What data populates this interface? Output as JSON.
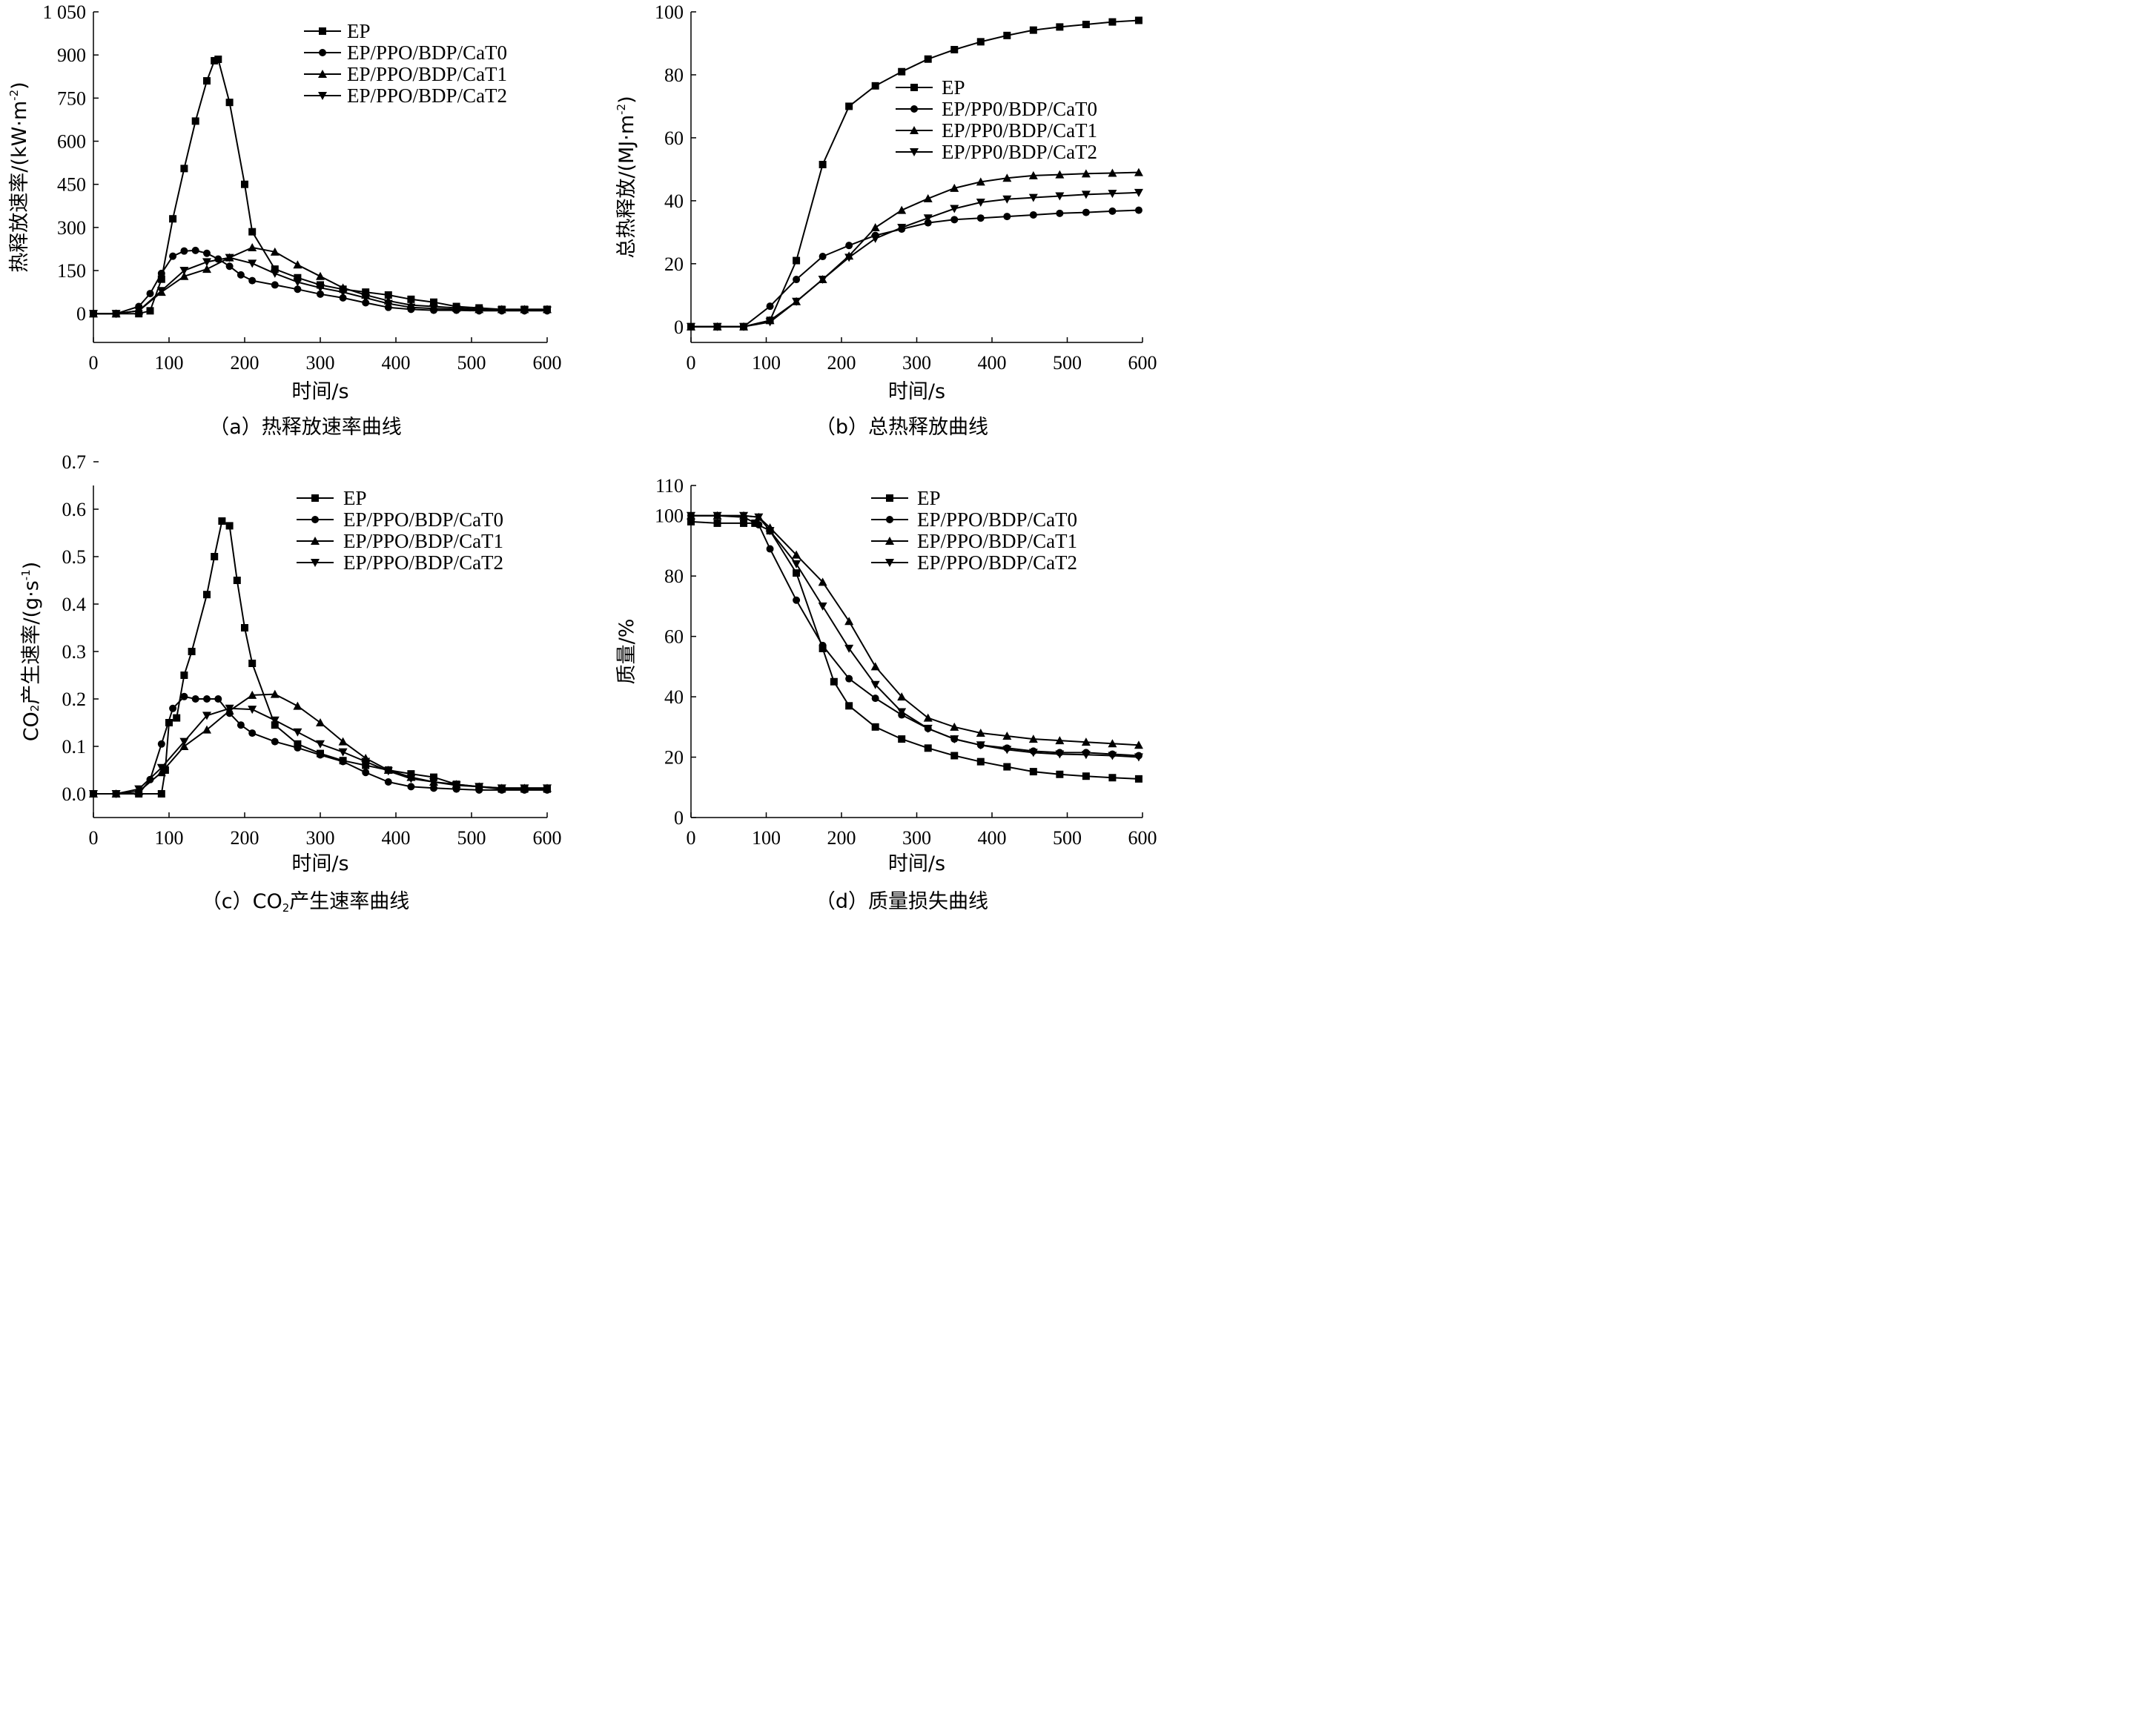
{
  "chart_data": [
    {
      "id": "a",
      "type": "line",
      "caption": "（a）热释放速率曲线",
      "xlabel": "时间/s",
      "ylabel": "热释放速率/(kW·m⁻²)",
      "xlim": [
        0,
        600
      ],
      "ylim": [
        -100,
        1050
      ],
      "xticks": [
        0,
        100,
        200,
        300,
        400,
        500,
        600
      ],
      "xtick_labels": [
        "0",
        "100",
        "200",
        "300",
        "400",
        "500",
        "600"
      ],
      "yticks": [
        0,
        150,
        300,
        450,
        600,
        750,
        900,
        1050
      ],
      "ytick_labels": [
        "0",
        "150",
        "300",
        "450",
        "600",
        "750",
        "900",
        "1 050"
      ],
      "legend_position": "top-right",
      "series": [
        {
          "name": "EP",
          "marker": "square",
          "x": [
            0,
            30,
            60,
            75,
            90,
            105,
            120,
            135,
            150,
            160,
            165,
            180,
            200,
            210,
            240,
            270,
            300,
            330,
            360,
            390,
            420,
            450,
            480,
            510,
            540,
            570,
            600
          ],
          "y": [
            0,
            0,
            0,
            10,
            120,
            330,
            505,
            670,
            810,
            880,
            885,
            735,
            450,
            285,
            155,
            125,
            100,
            85,
            75,
            65,
            50,
            40,
            25,
            20,
            15,
            15,
            15
          ]
        },
        {
          "name": "EP/PPO/BDP/CaT0",
          "marker": "circle",
          "x": [
            0,
            30,
            60,
            75,
            90,
            105,
            120,
            135,
            150,
            165,
            180,
            195,
            210,
            240,
            270,
            300,
            330,
            360,
            390,
            420,
            450,
            480,
            510,
            540,
            570,
            600
          ],
          "y": [
            0,
            0,
            25,
            70,
            140,
            200,
            218,
            220,
            210,
            190,
            165,
            135,
            115,
            100,
            85,
            68,
            55,
            38,
            22,
            15,
            12,
            12,
            10,
            10,
            10,
            10
          ]
        },
        {
          "name": "EP/PPO/BDP/CaT1",
          "marker": "triangle-up",
          "x": [
            0,
            30,
            60,
            90,
            120,
            150,
            180,
            210,
            240,
            270,
            300,
            330,
            360,
            390,
            420,
            450,
            480,
            510,
            540,
            570,
            600
          ],
          "y": [
            0,
            0,
            10,
            75,
            130,
            155,
            195,
            230,
            215,
            170,
            130,
            90,
            65,
            45,
            30,
            25,
            20,
            15,
            15,
            15,
            15
          ]
        },
        {
          "name": "EP/PPO/BDP/CaT2",
          "marker": "triangle-down",
          "x": [
            0,
            30,
            60,
            90,
            120,
            150,
            180,
            210,
            240,
            270,
            300,
            330,
            360,
            390,
            420,
            450,
            480,
            510,
            540,
            570,
            600
          ],
          "y": [
            0,
            0,
            10,
            80,
            150,
            180,
            195,
            175,
            140,
            110,
            90,
            75,
            55,
            35,
            22,
            18,
            15,
            12,
            12,
            12,
            12
          ]
        }
      ]
    },
    {
      "id": "b",
      "type": "line",
      "caption": "（b）总热释放曲线",
      "xlabel": "时间/s",
      "ylabel": "总热释放/(MJ·m⁻²)",
      "xlim": [
        0,
        600
      ],
      "ylim": [
        -5,
        100
      ],
      "xticks": [
        0,
        100,
        200,
        300,
        400,
        500,
        600
      ],
      "xtick_labels": [
        "0",
        "100",
        "200",
        "300",
        "400",
        "500",
        "600"
      ],
      "yticks": [
        0,
        20,
        40,
        60,
        80,
        100
      ],
      "ytick_labels": [
        "0",
        "20",
        "40",
        "60",
        "80",
        "100"
      ],
      "legend_position": "center-right",
      "series": [
        {
          "name": "EP",
          "marker": "square",
          "x": [
            0,
            35,
            70,
            105,
            140,
            175,
            210,
            245,
            280,
            315,
            350,
            385,
            420,
            455,
            490,
            525,
            560,
            595
          ],
          "y": [
            0,
            0,
            0,
            2,
            21,
            51.5,
            70,
            76.5,
            81,
            85,
            88,
            90.5,
            92.5,
            94.2,
            95.2,
            96,
            96.8,
            97.3
          ]
        },
        {
          "name": "EP/PP0/BDP/CaT0",
          "marker": "circle",
          "x": [
            0,
            35,
            70,
            105,
            140,
            175,
            210,
            245,
            280,
            315,
            350,
            385,
            420,
            455,
            490,
            525,
            560,
            595
          ],
          "y": [
            0,
            0,
            0,
            6.5,
            15,
            22.3,
            25.8,
            29,
            31,
            33,
            34,
            34.5,
            35,
            35.5,
            36,
            36.3,
            36.7,
            37
          ]
        },
        {
          "name": "EP/PP0/BDP/CaT1",
          "marker": "triangle-up",
          "x": [
            0,
            35,
            70,
            105,
            140,
            175,
            210,
            245,
            280,
            315,
            350,
            385,
            420,
            455,
            490,
            525,
            560,
            595
          ],
          "y": [
            0,
            0,
            0,
            2,
            8,
            15,
            22.5,
            31.5,
            37,
            40.7,
            44,
            46,
            47.2,
            48,
            48.3,
            48.6,
            48.8,
            49
          ]
        },
        {
          "name": "EP/PP0/BDP/CaT2",
          "marker": "triangle-down",
          "x": [
            0,
            35,
            70,
            105,
            140,
            175,
            210,
            245,
            280,
            315,
            350,
            385,
            420,
            455,
            490,
            525,
            560,
            595
          ],
          "y": [
            0,
            0,
            0,
            1.5,
            8,
            15,
            22,
            28,
            31.5,
            34.5,
            37.5,
            39.5,
            40.5,
            41,
            41.5,
            42,
            42.3,
            42.6
          ]
        }
      ]
    },
    {
      "id": "c",
      "type": "line",
      "caption": "（c）CO₂产生速率曲线",
      "xlabel": "时间/s",
      "ylabel": "CO₂产生速率/(g·s⁻¹)",
      "xlim": [
        0,
        600
      ],
      "ylim": [
        -0.05,
        0.65
      ],
      "xticks": [
        0,
        100,
        200,
        300,
        400,
        500,
        600
      ],
      "xtick_labels": [
        "0",
        "100",
        "200",
        "300",
        "400",
        "500",
        "600"
      ],
      "yticks": [
        0.0,
        0.1,
        0.2,
        0.3,
        0.4,
        0.5,
        0.6,
        0.7
      ],
      "ytick_labels": [
        "0.0",
        "0.1",
        "0.2",
        "0.3",
        "0.4",
        "0.5",
        "0.6",
        "0.7"
      ],
      "legend_position": "top-right",
      "series": [
        {
          "name": "EP",
          "marker": "square",
          "x": [
            0,
            30,
            60,
            90,
            95,
            100,
            110,
            120,
            130,
            150,
            160,
            170,
            180,
            190,
            200,
            210,
            240,
            270,
            300,
            330,
            360,
            390,
            420,
            450,
            480,
            510,
            540,
            570,
            600
          ],
          "y": [
            0,
            0,
            0,
            0,
            0.05,
            0.15,
            0.16,
            0.25,
            0.3,
            0.42,
            0.5,
            0.575,
            0.565,
            0.45,
            0.35,
            0.275,
            0.145,
            0.105,
            0.085,
            0.07,
            0.06,
            0.05,
            0.042,
            0.035,
            0.02,
            0.015,
            0.01,
            0.01,
            0.01
          ]
        },
        {
          "name": "EP/PPO/BDP/CaT0",
          "marker": "circle",
          "x": [
            0,
            30,
            60,
            75,
            90,
            105,
            120,
            135,
            150,
            165,
            180,
            195,
            210,
            240,
            270,
            300,
            330,
            360,
            390,
            420,
            450,
            480,
            510,
            540,
            570,
            600
          ],
          "y": [
            0,
            0,
            0,
            0.03,
            0.105,
            0.18,
            0.205,
            0.2,
            0.2,
            0.2,
            0.17,
            0.145,
            0.128,
            0.11,
            0.097,
            0.082,
            0.068,
            0.045,
            0.025,
            0.015,
            0.012,
            0.01,
            0.008,
            0.008,
            0.008,
            0.008
          ]
        },
        {
          "name": "EP/PPO/BDP/CaT1",
          "marker": "triangle-up",
          "x": [
            0,
            30,
            60,
            90,
            120,
            150,
            180,
            210,
            240,
            270,
            300,
            330,
            360,
            390,
            420,
            450,
            480,
            510,
            540,
            570,
            600
          ],
          "y": [
            0,
            0,
            0.005,
            0.045,
            0.1,
            0.135,
            0.175,
            0.208,
            0.21,
            0.185,
            0.15,
            0.11,
            0.075,
            0.05,
            0.035,
            0.025,
            0.02,
            0.015,
            0.012,
            0.012,
            0.012
          ]
        },
        {
          "name": "EP/PPO/BDP/CaT2",
          "marker": "triangle-down",
          "x": [
            0,
            30,
            60,
            90,
            120,
            150,
            180,
            210,
            240,
            270,
            300,
            330,
            360,
            390,
            420,
            450,
            480,
            510,
            540,
            570,
            600
          ],
          "y": [
            0,
            0,
            0.01,
            0.055,
            0.11,
            0.165,
            0.18,
            0.178,
            0.155,
            0.13,
            0.105,
            0.088,
            0.068,
            0.048,
            0.032,
            0.025,
            0.018,
            0.015,
            0.012,
            0.012,
            0.012
          ]
        }
      ]
    },
    {
      "id": "d",
      "type": "line",
      "caption": "（d）质量损失曲线",
      "xlabel": "时间/s",
      "ylabel": "质量/%",
      "xlim": [
        0,
        600
      ],
      "ylim": [
        0,
        110
      ],
      "xticks": [
        0,
        100,
        200,
        300,
        400,
        500,
        600
      ],
      "xtick_labels": [
        "0",
        "100",
        "200",
        "300",
        "400",
        "500",
        "600"
      ],
      "yticks": [
        0,
        20,
        40,
        60,
        80,
        100,
        110
      ],
      "ytick_labels": [
        "0",
        "20",
        "40",
        "60",
        "80",
        "100",
        "110"
      ],
      "legend_position": "top-right",
      "series": [
        {
          "name": "EP",
          "marker": "square",
          "x": [
            0,
            35,
            70,
            85,
            105,
            140,
            175,
            190,
            210,
            245,
            280,
            315,
            350,
            385,
            420,
            455,
            490,
            525,
            560,
            595
          ],
          "y": [
            98,
            97.5,
            97.5,
            97.5,
            95,
            81,
            56,
            45,
            37,
            30,
            26,
            23,
            20.5,
            18.5,
            16.8,
            15.2,
            14.3,
            13.7,
            13.2,
            12.8
          ]
        },
        {
          "name": "EP/PPO/BDP/CaT0",
          "marker": "circle",
          "x": [
            0,
            35,
            70,
            90,
            105,
            140,
            175,
            210,
            245,
            280,
            315,
            350,
            385,
            420,
            455,
            490,
            525,
            560,
            595
          ],
          "y": [
            100,
            100,
            99.5,
            97,
            89,
            72,
            57,
            46,
            39.5,
            34,
            29.5,
            26,
            24,
            23,
            22,
            21.5,
            21.5,
            21,
            20.5
          ]
        },
        {
          "name": "EP/PPO/BDP/CaT1",
          "marker": "triangle-up",
          "x": [
            0,
            35,
            70,
            90,
            105,
            140,
            175,
            210,
            245,
            280,
            315,
            350,
            385,
            420,
            455,
            490,
            525,
            560,
            595
          ],
          "y": [
            100,
            100,
            100,
            99.5,
            96,
            87,
            78,
            65,
            50,
            40,
            33,
            30,
            28,
            27,
            26,
            25.5,
            25,
            24.5,
            24
          ]
        },
        {
          "name": "EP/PPO/BDP/CaT2",
          "marker": "triangle-down",
          "x": [
            0,
            35,
            70,
            90,
            105,
            140,
            175,
            210,
            245,
            280,
            315,
            350,
            385,
            420,
            455,
            490,
            525,
            560,
            595
          ],
          "y": [
            100,
            100,
            100,
            99.5,
            95,
            84,
            70,
            56,
            44,
            35,
            29.5,
            26,
            24,
            22.5,
            21.5,
            21,
            20.8,
            20.5,
            20
          ]
        }
      ]
    }
  ]
}
